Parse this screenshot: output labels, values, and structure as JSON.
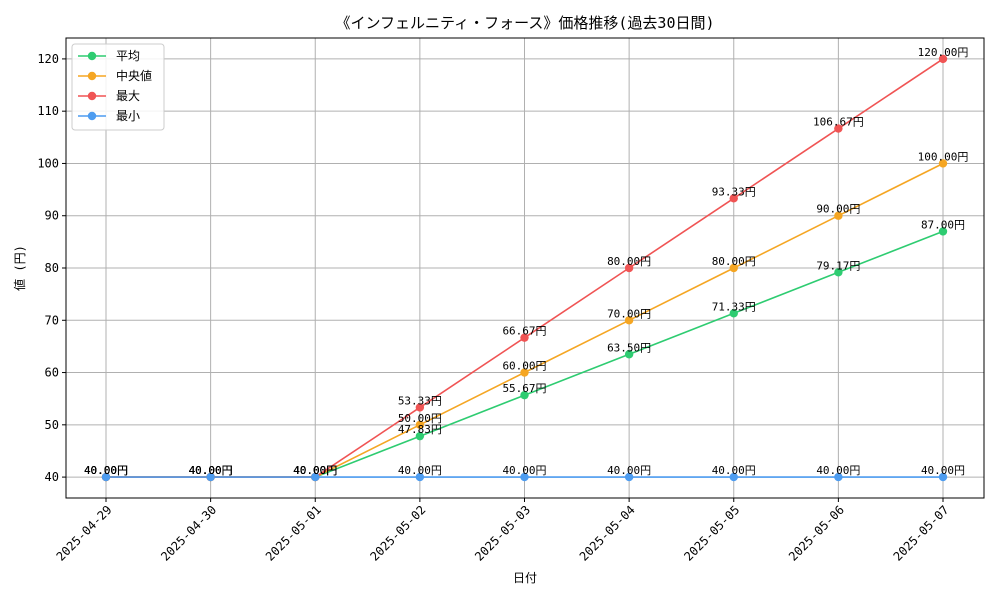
{
  "chart_data": {
    "type": "line",
    "title": "《インフェルニティ・フォース》価格推移(過去30日間)",
    "xlabel": "日付",
    "ylabel": "値 (円)",
    "categories": [
      "2025-04-29",
      "2025-04-30",
      "2025-05-01",
      "2025-05-02",
      "2025-05-03",
      "2025-05-04",
      "2025-05-05",
      "2025-05-06",
      "2025-05-07"
    ],
    "ylim": [
      36,
      124
    ],
    "yticks": [
      40,
      50,
      60,
      70,
      80,
      90,
      100,
      110,
      120
    ],
    "grid": true,
    "legend_position": "top-left",
    "series": [
      {
        "name": "平均",
        "color": "#2ecc71",
        "values": [
          40,
          40,
          40,
          47.83,
          55.67,
          63.5,
          71.33,
          79.17,
          87
        ],
        "labels": [
          "40.00円",
          "40.00円",
          "40.00円",
          "47.83円",
          "55.67円",
          "63.50円",
          "71.33円",
          "79.17円",
          "87.00円"
        ]
      },
      {
        "name": "中央値",
        "color": "#f5a623",
        "values": [
          40,
          40,
          40,
          50,
          60,
          70,
          80,
          90,
          100
        ],
        "labels": [
          "40.00円",
          "40.00円",
          "40.00円",
          "50.00円",
          "60.00円",
          "70.00円",
          "80.00円",
          "90.00円",
          "100.00円"
        ]
      },
      {
        "name": "最大",
        "color": "#f05454",
        "values": [
          40,
          40,
          40,
          53.33,
          66.67,
          80,
          93.33,
          106.67,
          120
        ],
        "labels": [
          "40.00円",
          "40.00円",
          "40.00円",
          "53.33円",
          "66.67円",
          "80.00円",
          "93.33円",
          "106.67円",
          "120.00円"
        ]
      },
      {
        "name": "最小",
        "color": "#4d9cf0",
        "values": [
          40,
          40,
          40,
          40,
          40,
          40,
          40,
          40,
          40
        ],
        "labels": [
          "40.00円",
          "40.00円",
          "40.00円",
          "40.00円",
          "40.00円",
          "40.00円",
          "40.00円",
          "40.00円",
          "40.00円"
        ]
      }
    ]
  }
}
